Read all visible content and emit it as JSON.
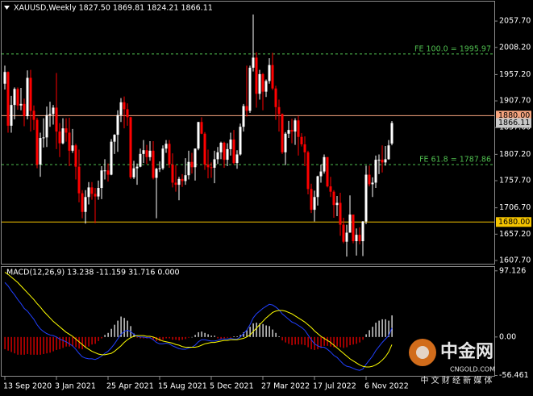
{
  "chart_data": [
    {
      "type": "candlestick",
      "title": "XAUUSD,Weekly  1827.50 1869.81 1824.21 1866.11",
      "categories": [
        "13 Sep 2020",
        null,
        null,
        null,
        null,
        null,
        null,
        null,
        null,
        null,
        null,
        null,
        null,
        null,
        null,
        null,
        "3 Jan 2021",
        null,
        null,
        null,
        null,
        null,
        null,
        null,
        null,
        null,
        null,
        null,
        null,
        null,
        null,
        null,
        "25 Apr 2021",
        null,
        null,
        null,
        null,
        null,
        null,
        null,
        null,
        null,
        null,
        null,
        null,
        null,
        null,
        null,
        "15 Aug 2021",
        null,
        null,
        null,
        null,
        null,
        null,
        null,
        null,
        null,
        null,
        null,
        null,
        null,
        null,
        null,
        "5 Dec 2021",
        null,
        null,
        null,
        null,
        null,
        null,
        null,
        null,
        null,
        null,
        null,
        null,
        null,
        null,
        null,
        "27 Mar 2022",
        null,
        null,
        null,
        null,
        null,
        null,
        null,
        null,
        null,
        null,
        null,
        null,
        null,
        null,
        null,
        "17 Jul 2022",
        null,
        null,
        null,
        null,
        null,
        null,
        null,
        null,
        null,
        null,
        null,
        null,
        null,
        null,
        null,
        "6 Nov 2022",
        null,
        null,
        null,
        null,
        null,
        null,
        null,
        null
      ],
      "open": [
        1940,
        1962,
        1861,
        1900,
        1930,
        1899,
        1902,
        1879,
        1951,
        1889,
        1872,
        1788,
        1838,
        1839,
        1881,
        1883,
        1895,
        1850,
        1828,
        1856,
        1848,
        1814,
        1824,
        1784,
        1734,
        1699,
        1727,
        1745,
        1733,
        1728,
        1744,
        1777,
        1777,
        1769,
        1831,
        1844,
        1881,
        1905,
        1892,
        1877,
        1764,
        1781,
        1784,
        1808,
        1815,
        1802,
        1814,
        1763,
        1780,
        1781,
        1818,
        1827,
        1788,
        1754,
        1750,
        1761,
        1757,
        1768,
        1793,
        1783,
        1818,
        1868,
        1846,
        1788,
        1783,
        1782,
        1798,
        1811,
        1829,
        1797,
        1817,
        1835,
        1791,
        1807,
        1859,
        1898,
        1889,
        1970,
        1989,
        1921,
        1958,
        1925,
        1945,
        1975,
        1931,
        1896,
        1883,
        1811,
        1846,
        1853,
        1850,
        1871,
        1840,
        1826,
        1811,
        1742,
        1703,
        1727,
        1766,
        1775,
        1802,
        1747,
        1737,
        1712,
        1716,
        1675,
        1643,
        1660,
        1694,
        1644,
        1656,
        1644,
        1681,
        1769,
        1751,
        1754,
        1797,
        1797,
        1792,
        1798,
        1827.5
      ],
      "high": [
        1974,
        1963,
        1917,
        1933,
        1933,
        1932,
        1912,
        1965,
        1966,
        1899,
        1876,
        1848,
        1875,
        1897,
        1906,
        1900,
        1960,
        1866,
        1875,
        1875,
        1876,
        1855,
        1827,
        1816,
        1740,
        1740,
        1755,
        1755,
        1744,
        1758,
        1785,
        1798,
        1790,
        1836,
        1845,
        1890,
        1913,
        1916,
        1903,
        1878,
        1795,
        1790,
        1818,
        1834,
        1825,
        1832,
        1832,
        1782,
        1794,
        1824,
        1834,
        1834,
        1809,
        1787,
        1765,
        1770,
        1800,
        1814,
        1810,
        1818,
        1868,
        1877,
        1849,
        1816,
        1792,
        1814,
        1821,
        1831,
        1831,
        1828,
        1848,
        1853,
        1815,
        1865,
        1902,
        1974,
        1974,
        2070,
        1999,
        1966,
        1960,
        1948,
        1988,
        1998,
        1936,
        1910,
        1884,
        1849,
        1870,
        1874,
        1875,
        1879,
        1847,
        1841,
        1814,
        1752,
        1739,
        1767,
        1788,
        1807,
        1802,
        1765,
        1740,
        1729,
        1735,
        1688,
        1675,
        1730,
        1694,
        1668,
        1670,
        1682,
        1786,
        1786,
        1764,
        1805,
        1807,
        1824,
        1823,
        1834,
        1869.81
      ],
      "low": [
        1929,
        1848,
        1848,
        1873,
        1891,
        1890,
        1860,
        1873,
        1850,
        1853,
        1781,
        1765,
        1820,
        1821,
        1859,
        1863,
        1817,
        1802,
        1826,
        1831,
        1785,
        1810,
        1760,
        1717,
        1687,
        1677,
        1713,
        1722,
        1678,
        1722,
        1723,
        1760,
        1756,
        1768,
        1808,
        1812,
        1868,
        1856,
        1861,
        1761,
        1761,
        1750,
        1783,
        1791,
        1789,
        1795,
        1760,
        1687,
        1774,
        1778,
        1810,
        1782,
        1745,
        1737,
        1721,
        1746,
        1750,
        1760,
        1771,
        1758,
        1815,
        1845,
        1778,
        1762,
        1763,
        1753,
        1789,
        1798,
        1782,
        1785,
        1805,
        1788,
        1780,
        1805,
        1850,
        1878,
        1885,
        1963,
        1895,
        1910,
        1890,
        1915,
        1940,
        1928,
        1872,
        1850,
        1808,
        1787,
        1838,
        1828,
        1825,
        1805,
        1822,
        1785,
        1732,
        1697,
        1681,
        1711,
        1754,
        1771,
        1745,
        1727,
        1688,
        1691,
        1654,
        1640,
        1615,
        1660,
        1640,
        1617,
        1638,
        1616,
        1676,
        1747,
        1727,
        1744,
        1770,
        1773,
        1786,
        1797,
        1824.21
      ],
      "close": [
        1962,
        1861,
        1900,
        1930,
        1899,
        1902,
        1879,
        1951,
        1889,
        1872,
        1788,
        1838,
        1839,
        1881,
        1883,
        1895,
        1850,
        1828,
        1856,
        1848,
        1814,
        1824,
        1784,
        1734,
        1699,
        1727,
        1745,
        1733,
        1728,
        1744,
        1777,
        1777,
        1769,
        1831,
        1844,
        1881,
        1905,
        1892,
        1877,
        1764,
        1781,
        1784,
        1808,
        1815,
        1802,
        1814,
        1763,
        1780,
        1781,
        1818,
        1827,
        1788,
        1754,
        1750,
        1761,
        1757,
        1768,
        1793,
        1783,
        1818,
        1868,
        1846,
        1788,
        1783,
        1782,
        1798,
        1811,
        1829,
        1797,
        1817,
        1835,
        1791,
        1807,
        1859,
        1898,
        1889,
        1970,
        1989,
        1921,
        1958,
        1925,
        1945,
        1975,
        1931,
        1896,
        1883,
        1811,
        1846,
        1853,
        1850,
        1871,
        1840,
        1826,
        1811,
        1742,
        1703,
        1727,
        1766,
        1775,
        1802,
        1747,
        1737,
        1712,
        1716,
        1675,
        1643,
        1660,
        1694,
        1644,
        1656,
        1644,
        1681,
        1769,
        1751,
        1754,
        1797,
        1797,
        1792,
        1798,
        1824,
        1866.11
      ],
      "up_color": "#ffffff",
      "down_color": "#ff0000",
      "ylim": [
        1601.6,
        2091.2
      ],
      "yticks": [
        {
          "value": 2057.7,
          "label": "2057.70"
        },
        {
          "value": 2008.2,
          "label": "2008.20"
        },
        {
          "value": 1957.2,
          "label": "1957.20"
        },
        {
          "value": 1907.7,
          "label": "1907.70"
        },
        {
          "value": 1857.6,
          "label": "1857.60"
        },
        {
          "value": 1807.2,
          "label": "1807.20"
        },
        {
          "value": 1757.7,
          "label": "1757.70"
        },
        {
          "value": 1706.7,
          "label": "1706.70"
        },
        {
          "value": 1657.2,
          "label": "1657.20"
        },
        {
          "value": 1607.7,
          "label": "1607.70"
        }
      ],
      "grid": false,
      "hlines": [
        {
          "value": 1880,
          "label": "1880.00",
          "color": "#f6a47e"
        },
        {
          "value": 1680,
          "label": "1680.00",
          "color": "#f5c400"
        }
      ],
      "annotations": [
        {
          "text": "FE 100.0 = 1995.97",
          "value": 1995.97
        },
        {
          "text": "FE 61.8 = 1787.86",
          "value": 1787.86
        }
      ],
      "annotation_color": "#4fbf4f",
      "last_price": 1866.11,
      "last_price_color": "#c8c8c8"
    },
    {
      "type": "macd",
      "title": "MACD(12,26,9) 13.238 -11.159 31.716 0.000",
      "histogram": [
        -18,
        -20,
        -22,
        -24,
        -26,
        -26,
        -26,
        -25,
        -26,
        -26,
        -26,
        -26,
        -25,
        -24,
        -23,
        -21,
        -19,
        -18,
        -16,
        -14,
        -14,
        -14,
        -15,
        -17,
        -18,
        -16,
        -14,
        -11,
        -10,
        -6,
        -2,
        3,
        6,
        12,
        18,
        24,
        30,
        28,
        24,
        16,
        5,
        -1,
        -2,
        -2,
        -2,
        -2,
        -4,
        -6,
        -6,
        -4,
        -2,
        -2,
        -4,
        -4,
        -5,
        -4,
        -3,
        -1,
        0,
        3,
        7,
        8,
        6,
        4,
        2,
        2,
        -2,
        -3,
        -2,
        -1,
        -1,
        1,
        1,
        3,
        7,
        10,
        15,
        20,
        21,
        20,
        19,
        17,
        16,
        11,
        6,
        1,
        -5,
        -8,
        -10,
        -12,
        -11,
        -11,
        -11,
        -12,
        -15,
        -18,
        -19,
        -18,
        -16,
        -13,
        -13,
        -14,
        -15,
        -14,
        -15,
        -16,
        -15,
        -12,
        -11,
        -10,
        -8,
        -4,
        4,
        10,
        15,
        21,
        24,
        26,
        26,
        24,
        31.716
      ],
      "histogram_up_color": "#ffffff",
      "histogram_down_color": "#ff0000",
      "series": [
        {
          "color": "#2140ff",
          "values": [
            80,
            75,
            68,
            62,
            55,
            49,
            42,
            38,
            32,
            26,
            18,
            12,
            8,
            5,
            3,
            2,
            0,
            -3,
            -5,
            -7,
            -10,
            -13,
            -18,
            -24,
            -29,
            -31,
            -32,
            -32,
            -33,
            -31,
            -28,
            -24,
            -21,
            -16,
            -10,
            -3,
            4,
            8,
            10,
            8,
            4,
            1,
            0,
            0,
            -1,
            -1,
            -4,
            -8,
            -10,
            -10,
            -9,
            -10,
            -13,
            -15,
            -17,
            -18,
            -18,
            -16,
            -15,
            -12,
            -7,
            -4,
            -4,
            -5,
            -6,
            -6,
            -5,
            -3,
            -3,
            -3,
            -2,
            -3,
            -3,
            0,
            5,
            10,
            18,
            28,
            34,
            38,
            42,
            45,
            48,
            47,
            44,
            40,
            34,
            30,
            26,
            22,
            20,
            17,
            14,
            10,
            3,
            -4,
            -10,
            -13,
            -15,
            -15,
            -18,
            -22,
            -27,
            -30,
            -35,
            -40,
            -43,
            -44,
            -46,
            -48,
            -49,
            -47,
            -40,
            -34,
            -28,
            -20,
            -14,
            -8,
            -3,
            2,
            13.238
          ]
        },
        {
          "color": "#ffff00",
          "values": [
            95,
            92,
            88,
            84,
            80,
            75,
            70,
            65,
            60,
            55,
            49,
            44,
            38,
            33,
            28,
            23,
            19,
            15,
            11,
            7,
            4,
            1,
            -3,
            -7,
            -11,
            -15,
            -18,
            -21,
            -23,
            -25,
            -26,
            -26,
            -25,
            -24,
            -21,
            -17,
            -13,
            -8,
            -4,
            -1,
            1,
            2,
            2,
            2,
            1,
            1,
            0,
            -2,
            -4,
            -6,
            -7,
            -8,
            -9,
            -11,
            -12,
            -14,
            -15,
            -15,
            -15,
            -15,
            -14,
            -12,
            -10,
            -9,
            -8,
            -8,
            -7,
            -6,
            -5,
            -5,
            -4,
            -4,
            -4,
            -3,
            -2,
            0,
            3,
            8,
            13,
            18,
            23,
            28,
            32,
            36,
            38,
            39,
            39,
            38,
            36,
            34,
            31,
            28,
            25,
            22,
            18,
            14,
            9,
            5,
            1,
            -2,
            -5,
            -8,
            -12,
            -16,
            -20,
            -24,
            -28,
            -32,
            -35,
            -38,
            -41,
            -43,
            -44,
            -44,
            -43,
            -41,
            -38,
            -34,
            -29,
            -22,
            -11.159
          ]
        }
      ],
      "ylim": [
        -57,
        104
      ],
      "yticks": [
        97.126,
        {
          "value": 0,
          "label": "0.00"
        },
        -56.461
      ]
    }
  ],
  "watermark": {
    "name": "中金网",
    "site": "CNGOLD.COM",
    "tagline": "中 文 财 经 新 媒 体"
  }
}
